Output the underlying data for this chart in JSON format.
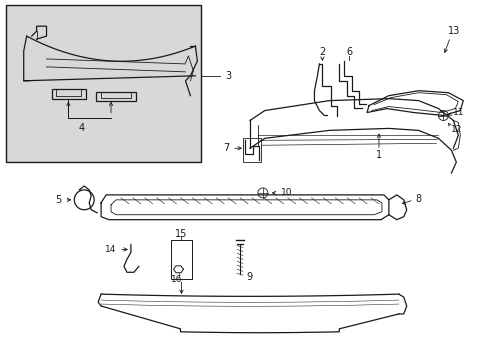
{
  "bg_color": "#ffffff",
  "line_color": "#1a1a1a",
  "box_bg": "#d8d8d8",
  "fig_width": 4.89,
  "fig_height": 3.6,
  "dpi": 100
}
